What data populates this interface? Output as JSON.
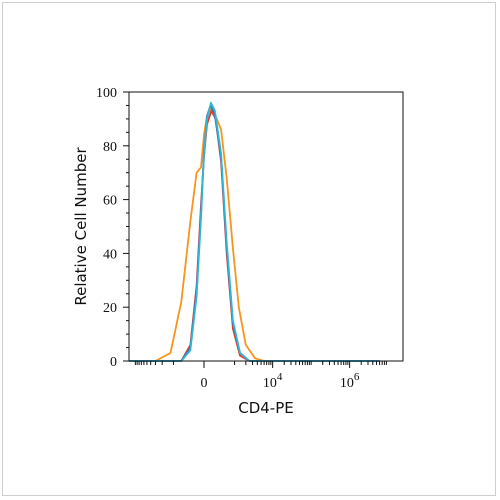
{
  "chart_data": {
    "type": "line",
    "title": "",
    "xlabel": "CD4-PE",
    "ylabel": "Relative Cell Number",
    "ylim": [
      0,
      100
    ],
    "yticks": [
      0,
      20,
      40,
      60,
      80,
      100
    ],
    "xscale": "biexponential",
    "xticks": [
      {
        "value": 0,
        "label": "0",
        "exp": ""
      },
      {
        "value": 10000,
        "label": "10",
        "exp": "4"
      },
      {
        "value": 1000000,
        "label": "10",
        "exp": "6"
      }
    ],
    "grid": false,
    "legend": "none",
    "series": [
      {
        "color": "#f7941d",
        "points": [
          [
            -30000,
            0
          ],
          [
            -3000,
            0
          ],
          [
            -1200,
            3
          ],
          [
            -600,
            22
          ],
          [
            -300,
            52
          ],
          [
            -150,
            70
          ],
          [
            -60,
            72
          ],
          [
            0,
            84
          ],
          [
            60,
            91
          ],
          [
            150,
            94
          ],
          [
            250,
            91
          ],
          [
            400,
            86
          ],
          [
            600,
            68
          ],
          [
            900,
            42
          ],
          [
            1300,
            20
          ],
          [
            2000,
            6
          ],
          [
            3500,
            1
          ],
          [
            6000,
            0
          ],
          [
            1000000,
            0
          ],
          [
            6000000,
            0
          ]
        ]
      },
      {
        "color": "#e03c31",
        "points": [
          [
            -30000,
            0
          ],
          [
            -600,
            0
          ],
          [
            -300,
            6
          ],
          [
            -150,
            28
          ],
          [
            -60,
            58
          ],
          [
            0,
            76
          ],
          [
            60,
            88
          ],
          [
            150,
            93
          ],
          [
            250,
            90
          ],
          [
            400,
            74
          ],
          [
            600,
            40
          ],
          [
            900,
            12
          ],
          [
            1400,
            2
          ],
          [
            2500,
            0
          ],
          [
            6000000,
            0
          ]
        ]
      },
      {
        "color": "#3f6fb5",
        "points": [
          [
            -30000,
            0
          ],
          [
            -600,
            0
          ],
          [
            -300,
            5
          ],
          [
            -150,
            26
          ],
          [
            -60,
            55
          ],
          [
            0,
            78
          ],
          [
            60,
            91
          ],
          [
            130,
            95
          ],
          [
            220,
            92
          ],
          [
            400,
            76
          ],
          [
            600,
            42
          ],
          [
            900,
            14
          ],
          [
            1400,
            3
          ],
          [
            2500,
            0
          ],
          [
            6000000,
            0
          ]
        ]
      },
      {
        "color": "#2fb8d4",
        "points": [
          [
            -30000,
            0
          ],
          [
            -600,
            0
          ],
          [
            -300,
            4
          ],
          [
            -150,
            24
          ],
          [
            -60,
            53
          ],
          [
            0,
            77
          ],
          [
            60,
            90
          ],
          [
            140,
            96
          ],
          [
            230,
            93
          ],
          [
            400,
            77
          ],
          [
            600,
            44
          ],
          [
            900,
            15
          ],
          [
            1400,
            3
          ],
          [
            2500,
            0
          ],
          [
            6000000,
            0
          ]
        ]
      }
    ]
  }
}
